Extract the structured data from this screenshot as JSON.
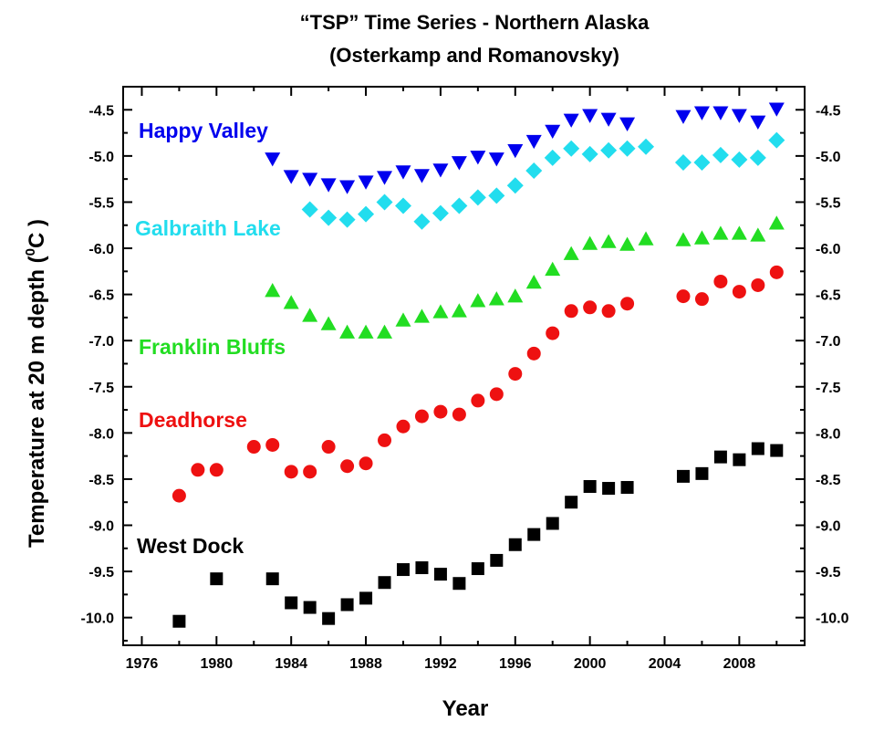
{
  "chart_data": {
    "type": "scatter",
    "title": "“TSP” Time Series - Northern Alaska",
    "subtitle": "(Osterkamp and Romanovsky)",
    "xlabel": "Year",
    "ylabel": "Temperature at 20 m depth (",
    "ylabel_unit": "C )",
    "ylabel_sup": "0",
    "xlim": [
      1975,
      2011.5
    ],
    "ylim": [
      -10.3,
      -4.25
    ],
    "x_ticks": [
      "1976",
      "1980",
      "1984",
      "1988",
      "1992",
      "1996",
      "2000",
      "2004",
      "2008"
    ],
    "y_ticks": [
      "-4.5",
      "-5.0",
      "-5.5",
      "-6.0",
      "-6.5",
      "-7.0",
      "-7.5",
      "-8.0",
      "-8.5",
      "-9.0",
      "-9.5",
      "-10.0"
    ],
    "y_ticks_right": [
      "-4.5",
      "-5.0",
      "-5.5",
      "-6.0",
      "-6.5",
      "-7.0",
      "-7.5",
      "-8.0",
      "-8.5",
      "-9.0",
      "-9.5",
      "-10.0"
    ],
    "grid": false,
    "series": [
      {
        "name": "Happy Valley",
        "color": "#0000ee",
        "marker": "triangle-down",
        "x": [
          1983,
          1984,
          1985,
          1986,
          1987,
          1988,
          1989,
          1990,
          1991,
          1992,
          1993,
          1994,
          1995,
          1996,
          1997,
          1998,
          1999,
          2000,
          2001,
          2002,
          2005,
          2006,
          2007,
          2008,
          2009,
          2010
        ],
        "y": [
          -5.03,
          -5.22,
          -5.25,
          -5.31,
          -5.33,
          -5.28,
          -5.23,
          -5.17,
          -5.21,
          -5.15,
          -5.07,
          -5.01,
          -5.03,
          -4.94,
          -4.84,
          -4.73,
          -4.61,
          -4.56,
          -4.6,
          -4.65,
          -4.57,
          -4.53,
          -4.53,
          -4.56,
          -4.63,
          -4.49
        ]
      },
      {
        "name": "Galbraith Lake",
        "color": "#22ddee",
        "marker": "diamond",
        "x": [
          1985,
          1986,
          1987,
          1988,
          1989,
          1990,
          1991,
          1992,
          1993,
          1994,
          1995,
          1996,
          1997,
          1998,
          1999,
          2000,
          2001,
          2002,
          2003,
          2005,
          2006,
          2007,
          2008,
          2009,
          2010
        ],
        "y": [
          -5.58,
          -5.67,
          -5.69,
          -5.63,
          -5.5,
          -5.54,
          -5.71,
          -5.62,
          -5.54,
          -5.45,
          -5.43,
          -5.32,
          -5.16,
          -5.02,
          -4.92,
          -4.98,
          -4.94,
          -4.92,
          -4.9,
          -5.07,
          -5.07,
          -4.99,
          -5.04,
          -5.02,
          -4.83
        ]
      },
      {
        "name": "Franklin Bluffs",
        "color": "#22dd22",
        "marker": "triangle-up",
        "x": [
          1983,
          1984,
          1985,
          1986,
          1987,
          1988,
          1989,
          1990,
          1991,
          1992,
          1993,
          1994,
          1995,
          1996,
          1997,
          1998,
          1999,
          2000,
          2001,
          2002,
          2003,
          2005,
          2006,
          2007,
          2008,
          2009,
          2010
        ],
        "y": [
          -6.46,
          -6.59,
          -6.73,
          -6.82,
          -6.91,
          -6.91,
          -6.91,
          -6.78,
          -6.74,
          -6.69,
          -6.68,
          -6.57,
          -6.55,
          -6.52,
          -6.37,
          -6.23,
          -6.06,
          -5.95,
          -5.93,
          -5.96,
          -5.9,
          -5.91,
          -5.89,
          -5.84,
          -5.84,
          -5.86,
          -5.73
        ]
      },
      {
        "name": "Deadhorse",
        "color": "#ee1111",
        "marker": "circle",
        "x": [
          1978,
          1979,
          1980,
          1982,
          1983,
          1984,
          1985,
          1986,
          1987,
          1988,
          1989,
          1990,
          1991,
          1992,
          1993,
          1994,
          1995,
          1996,
          1997,
          1998,
          1999,
          2000,
          2001,
          2002,
          2005,
          2006,
          2007,
          2008,
          2009,
          2010
        ],
        "y": [
          -8.68,
          -8.4,
          -8.4,
          -8.15,
          -8.13,
          -8.42,
          -8.42,
          -8.15,
          -8.36,
          -8.33,
          -8.08,
          -7.93,
          -7.82,
          -7.77,
          -7.8,
          -7.65,
          -7.58,
          -7.36,
          -7.14,
          -6.92,
          -6.68,
          -6.64,
          -6.68,
          -6.6,
          -6.52,
          -6.55,
          -6.36,
          -6.47,
          -6.4,
          -6.26
        ]
      },
      {
        "name": "West Dock",
        "color": "#000000",
        "marker": "square",
        "x": [
          1978,
          1980,
          1983,
          1984,
          1985,
          1986,
          1987,
          1988,
          1989,
          1990,
          1991,
          1992,
          1993,
          1994,
          1995,
          1996,
          1997,
          1998,
          1999,
          2000,
          2001,
          2002,
          2005,
          2006,
          2007,
          2008,
          2009,
          2010
        ],
        "y": [
          -10.04,
          -9.58,
          -9.58,
          -9.84,
          -9.89,
          -10.01,
          -9.86,
          -9.79,
          -9.62,
          -9.48,
          -9.46,
          -9.53,
          -9.63,
          -9.47,
          -9.38,
          -9.21,
          -9.1,
          -8.98,
          -8.75,
          -8.58,
          -8.6,
          -8.59,
          -8.47,
          -8.44,
          -8.26,
          -8.29,
          -8.17,
          -8.19
        ]
      }
    ]
  }
}
